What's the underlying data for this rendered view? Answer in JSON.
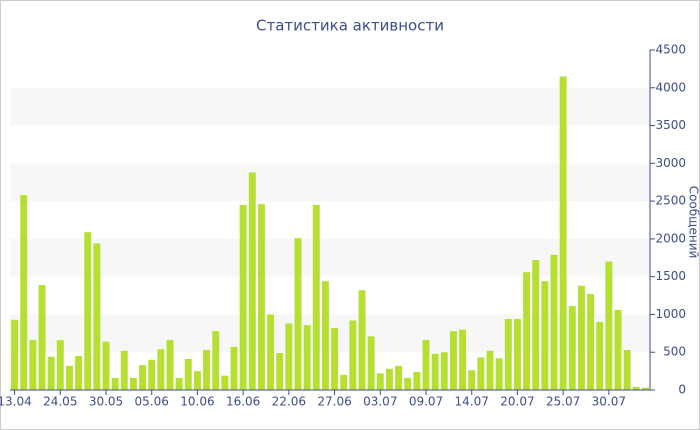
{
  "chart_data": {
    "type": "bar",
    "title": "Статистика активности",
    "y_label": "Сообщений",
    "categories": [
      "13.04",
      null,
      null,
      null,
      null,
      "24.05",
      null,
      null,
      null,
      null,
      "30.05",
      null,
      null,
      null,
      null,
      "05.06",
      null,
      null,
      null,
      null,
      "10.06",
      null,
      null,
      null,
      null,
      "16.06",
      null,
      null,
      null,
      null,
      "22.06",
      null,
      null,
      null,
      null,
      "27.06",
      null,
      null,
      null,
      null,
      "03.07",
      null,
      null,
      null,
      null,
      "09.07",
      null,
      null,
      null,
      null,
      "14.07",
      null,
      null,
      null,
      null,
      "20.07",
      null,
      null,
      null,
      null,
      "25.07",
      null,
      null,
      null,
      null,
      "30.07",
      null,
      null,
      null,
      null
    ],
    "values": [
      930,
      2580,
      660,
      1390,
      440,
      660,
      320,
      450,
      2090,
      1940,
      640,
      160,
      520,
      160,
      330,
      400,
      540,
      660,
      160,
      410,
      250,
      530,
      780,
      190,
      570,
      2450,
      2880,
      2460,
      1000,
      490,
      880,
      2010,
      860,
      2450,
      1440,
      820,
      200,
      920,
      1320,
      710,
      220,
      280,
      320,
      160,
      240,
      660,
      480,
      500,
      780,
      800,
      260,
      430,
      520,
      420,
      940,
      940,
      1560,
      1720,
      1440,
      1790,
      4150,
      1110,
      1380,
      1270,
      900,
      1700,
      1060,
      530,
      40,
      30
    ],
    "color": "#b5e033",
    "ylim": [
      0,
      4500
    ],
    "yticks": [
      0,
      500,
      1000,
      1500,
      2000,
      2500,
      3000,
      3500,
      4000,
      4500
    ],
    "y_axis_side": "right",
    "grid_bands": true,
    "band_color": "#f7f7f7"
  }
}
